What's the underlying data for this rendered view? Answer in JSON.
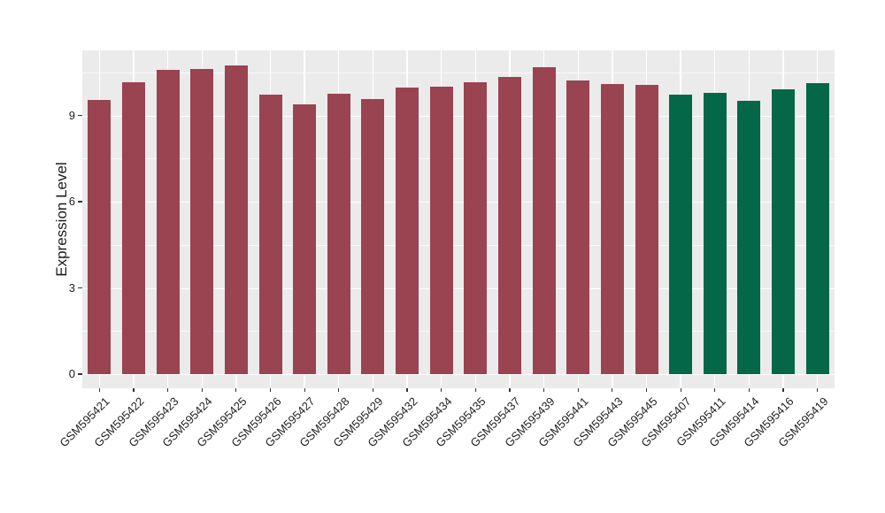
{
  "chart_data": {
    "type": "bar",
    "title": "",
    "ylabel": "Expression Level",
    "xlabel": "",
    "categories": [
      "GSM595421",
      "GSM595422",
      "GSM595423",
      "GSM595424",
      "GSM595425",
      "GSM595426",
      "GSM595427",
      "GSM595428",
      "GSM595429",
      "GSM595432",
      "GSM595434",
      "GSM595435",
      "GSM595437",
      "GSM595439",
      "GSM595441",
      "GSM595443",
      "GSM595445",
      "GSM595407",
      "GSM595411",
      "GSM595414",
      "GSM595416",
      "GSM595419"
    ],
    "values": [
      9.55,
      10.15,
      10.6,
      10.63,
      10.75,
      9.73,
      9.38,
      9.76,
      9.56,
      9.96,
      10.0,
      10.15,
      10.34,
      10.69,
      10.22,
      10.09,
      10.06,
      9.73,
      9.79,
      9.5,
      9.9,
      10.12
    ],
    "bar_colors": [
      "#9A4351",
      "#9A4351",
      "#9A4351",
      "#9A4351",
      "#9A4351",
      "#9A4351",
      "#9A4351",
      "#9A4351",
      "#9A4351",
      "#9A4351",
      "#9A4351",
      "#9A4351",
      "#9A4351",
      "#9A4351",
      "#9A4351",
      "#9A4351",
      "#9A4351",
      "#036748",
      "#036748",
      "#036748",
      "#036748",
      "#036748"
    ],
    "group_colors": {
      "maroon": "#9A4351",
      "green": "#036748"
    },
    "yticks": [
      0,
      3,
      6,
      9
    ],
    "yticks_minor": [
      1.5,
      4.5,
      7.5,
      10.5
    ],
    "ylim": [
      -0.49,
      11.26
    ],
    "grid": true,
    "legend_position": "none",
    "panel_bg": "#EBEBEB",
    "gridline_color": "#FFFFFF",
    "axis_text_color": "#1F1F1F"
  }
}
